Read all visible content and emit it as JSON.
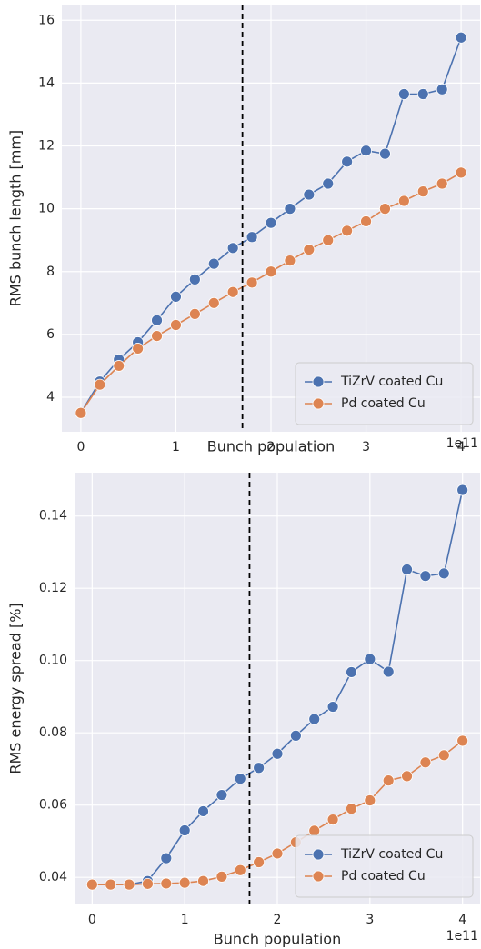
{
  "chart_data": [
    {
      "type": "line",
      "x": [
        0,
        0.2,
        0.4,
        0.6,
        0.8,
        1.0,
        1.2,
        1.4,
        1.6,
        1.8,
        2.0,
        2.2,
        2.4,
        2.6,
        2.8,
        3.0,
        3.2,
        3.4,
        3.6,
        3.8,
        4.0
      ],
      "x_label": "Bunch population",
      "x_offset_label": "1e11",
      "y_label": "RMS bunch length [mm]",
      "series": [
        {
          "name": "TiZrV coated Cu",
          "color": "#4c72b0",
          "values": [
            3.5,
            4.5,
            5.2,
            5.75,
            6.45,
            7.2,
            7.75,
            8.25,
            8.75,
            9.1,
            9.55,
            10.0,
            10.45,
            10.8,
            11.5,
            11.85,
            11.75,
            13.65,
            13.65,
            13.8,
            15.45
          ]
        },
        {
          "name": "Pd coated Cu",
          "color": "#dd8452",
          "values": [
            3.5,
            4.4,
            5.0,
            5.55,
            5.95,
            6.3,
            6.65,
            7.0,
            7.35,
            7.65,
            8.0,
            8.35,
            8.7,
            9.0,
            9.3,
            9.6,
            10.0,
            10.25,
            10.55,
            10.8,
            11.15
          ]
        }
      ],
      "xlim": [
        -0.2,
        4.2
      ],
      "ylim": [
        2.9,
        16.5
      ],
      "xticks": [
        0,
        1,
        2,
        3,
        4
      ],
      "yticks": [
        4,
        6,
        8,
        10,
        12,
        14,
        16
      ],
      "vline": 1.7,
      "grid": true,
      "legend": "lower right"
    },
    {
      "type": "line",
      "x": [
        0,
        0.2,
        0.4,
        0.6,
        0.8,
        1.0,
        1.2,
        1.4,
        1.6,
        1.8,
        2.0,
        2.2,
        2.4,
        2.6,
        2.8,
        3.0,
        3.2,
        3.4,
        3.6,
        3.8,
        4.0
      ],
      "x_label": "Bunch population",
      "x_offset_label": "1e11",
      "y_label": "RMS energy spread [%]",
      "series": [
        {
          "name": "TiZrV coated Cu",
          "color": "#4c72b0",
          "values": [
            0.038,
            0.038,
            0.038,
            0.039,
            0.0453,
            0.053,
            0.0583,
            0.0628,
            0.0673,
            0.0703,
            0.0742,
            0.0792,
            0.0838,
            0.0872,
            0.0968,
            0.1004,
            0.0969,
            0.1252,
            0.1234,
            0.1241,
            0.1472
          ]
        },
        {
          "name": "Pd coated Cu",
          "color": "#dd8452",
          "values": [
            0.038,
            0.038,
            0.038,
            0.0382,
            0.0383,
            0.0385,
            0.039,
            0.0402,
            0.042,
            0.0442,
            0.0466,
            0.0497,
            0.0529,
            0.056,
            0.059,
            0.0613,
            0.0668,
            0.068,
            0.0718,
            0.0738,
            0.0778
          ]
        }
      ],
      "xlim": [
        -0.19,
        4.19
      ],
      "ylim": [
        0.0325,
        0.152
      ],
      "xticks": [
        0,
        1,
        2,
        3,
        4
      ],
      "yticks": [
        0.04,
        0.06,
        0.08,
        {
          "value": 0.1,
          "label": "0.10"
        },
        0.12,
        0.14
      ],
      "vline": 1.7,
      "grid": true,
      "legend": "lower right"
    }
  ]
}
